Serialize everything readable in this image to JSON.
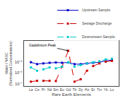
{
  "chart_data": {
    "type": "line",
    "xlabel": "Rare Earth Elements",
    "ylabel": "Water / NASC\n(Normalized Concentrations)",
    "categories": [
      "La",
      "Ce",
      "Pr",
      "Nd",
      "Sm",
      "Eu",
      "Gd",
      "Tb",
      "Dy",
      "Ho",
      "Er",
      "Tm",
      "Yb",
      "Lu"
    ],
    "series": [
      {
        "name": "Upstream Sample",
        "color": "#0000cc",
        "line_style": "solid",
        "marker": "square",
        "values": [
          9e-06,
          6e-06,
          7e-06,
          8e-06,
          8.5e-06,
          8e-06,
          8.5e-06,
          6e-06,
          6e-06,
          7e-06,
          8e-06,
          9e-06,
          1.2e-05,
          1.4e-05
        ]
      },
      {
        "name": "Sewage Discharge",
        "color": "#cc0000",
        "line_style": "dashed",
        "marker": "square",
        "values": [
          1.5e-07,
          1.8e-07,
          1.8e-07,
          1.8e-07,
          1.7e-07,
          3.5e-06,
          0.0001,
          1.5e-07,
          2.5e-07,
          1.5e-06,
          4e-06,
          7e-06,
          1e-05,
          1.2e-05
        ]
      },
      {
        "name": "Downstream Sample",
        "color": "#00cccc",
        "line_style": "dashed",
        "marker": "square",
        "values": [
          3e-06,
          1.5e-06,
          2e-06,
          3e-06,
          2.5e-06,
          3.5e-06,
          9e-06,
          3.5e-06,
          5e-06,
          7e-06,
          9e-06,
          1.1e-05,
          1.6e-05,
          1.9e-05
        ]
      }
    ],
    "log": "y",
    "ylim": [
      6e-08,
      0.0008
    ],
    "yticks": [
      {
        "value": 1e-07,
        "label": "10⁻⁷"
      },
      {
        "value": 1e-06,
        "label": "10⁻⁶"
      },
      {
        "value": 1e-05,
        "label": "10⁻⁵"
      }
    ],
    "grid": false,
    "legend": "upper right",
    "annotations": [
      {
        "text": "Gadolinium Peak",
        "x": "Gd",
        "y": 0.0001
      }
    ]
  }
}
